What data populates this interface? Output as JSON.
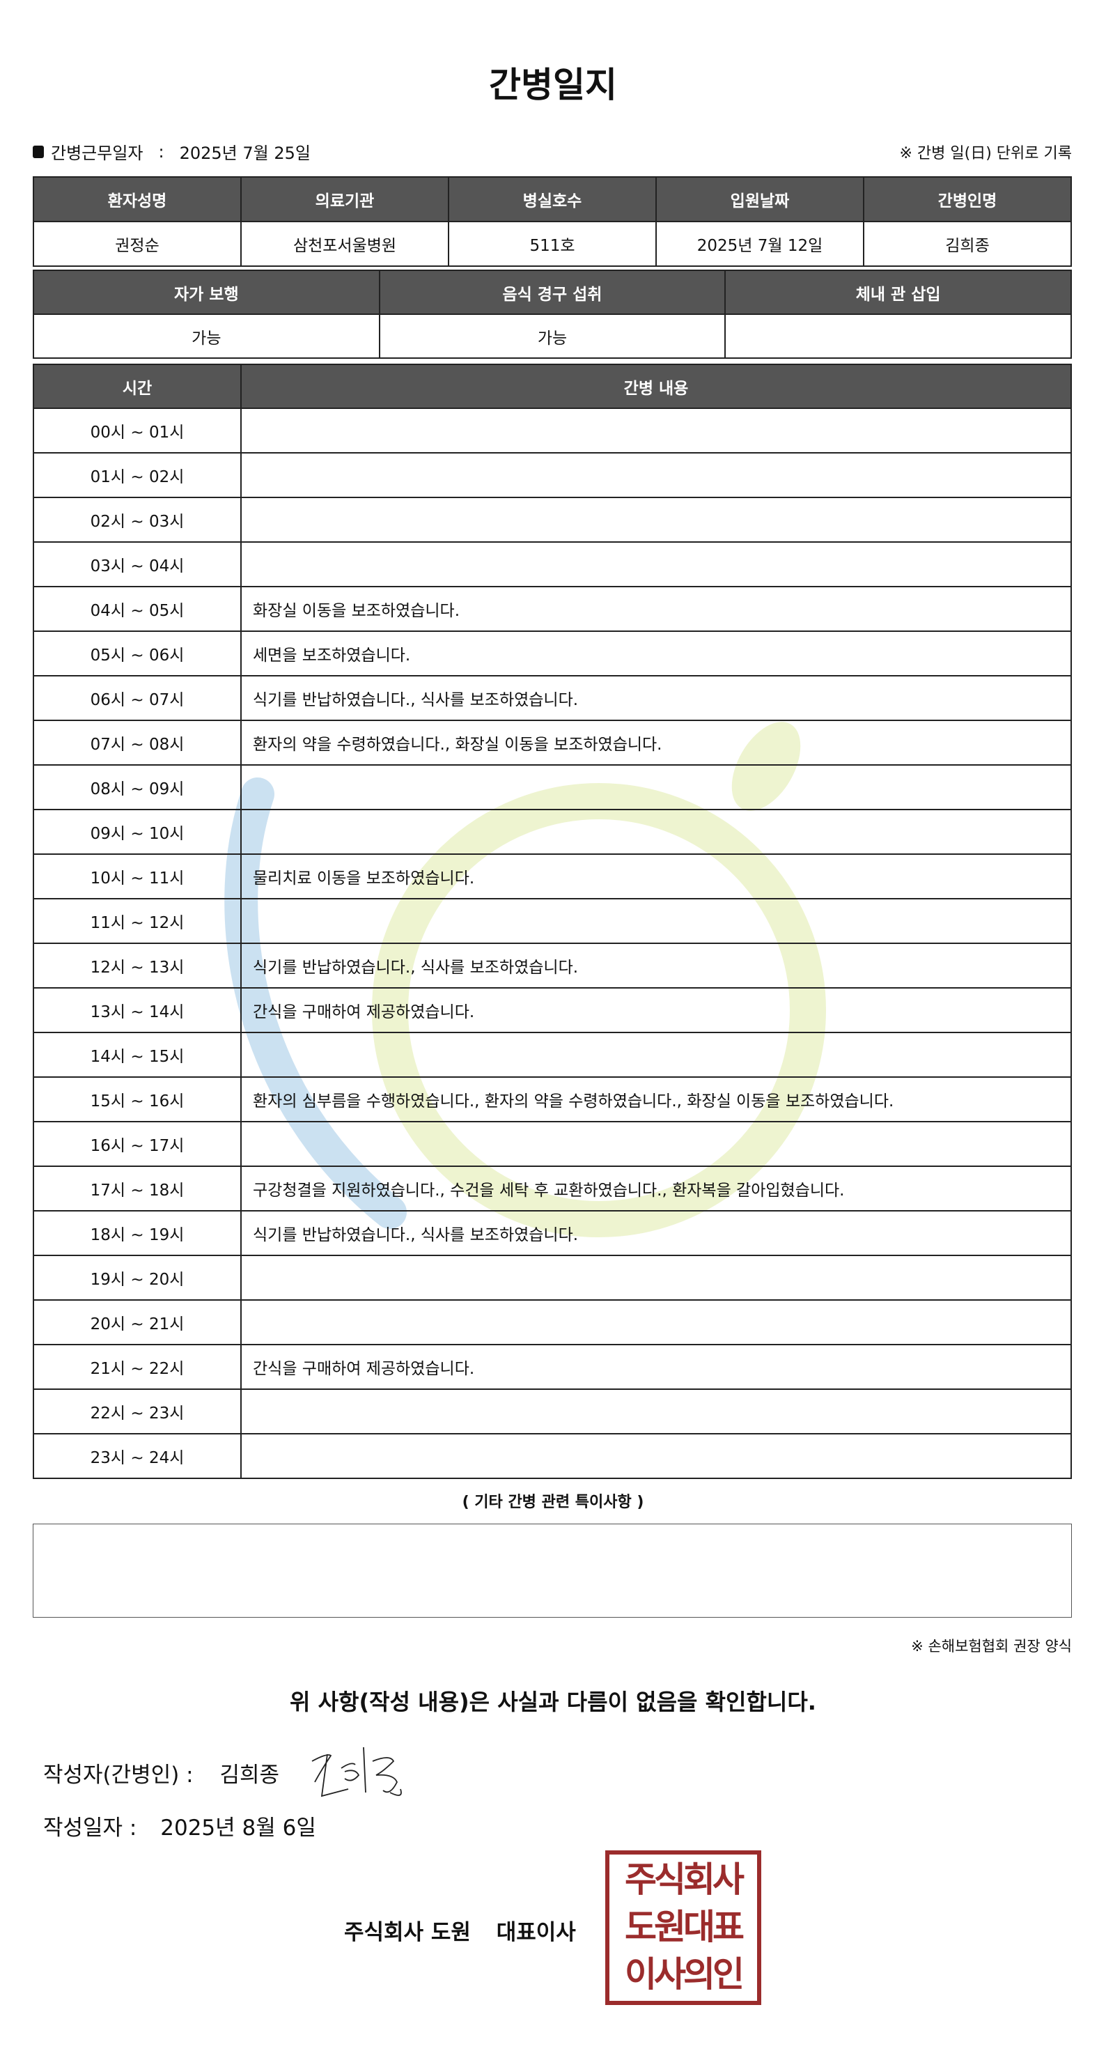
{
  "title": "간병일지",
  "work_date": {
    "label": "간병근무일자",
    "separator": ":",
    "value": "2025년 7월 25일"
  },
  "day_note": "※ 간병 일(日) 단위로 기록",
  "info": {
    "headers": [
      "환자성명",
      "의료기관",
      "병실호수",
      "입원날짜",
      "간병인명"
    ],
    "values": [
      "권정순",
      "삼천포서울병원",
      "511호",
      "2025년 7월 12일",
      "김희종"
    ]
  },
  "status": {
    "headers": [
      "자가 보행",
      "음식 경구 섭취",
      "체내 관 삽입"
    ],
    "values": [
      "가능",
      "가능",
      ""
    ]
  },
  "log": {
    "headers": [
      "시간",
      "간병 내용"
    ],
    "rows": [
      {
        "time": "00시 ~ 01시",
        "content": ""
      },
      {
        "time": "01시 ~ 02시",
        "content": ""
      },
      {
        "time": "02시 ~ 03시",
        "content": ""
      },
      {
        "time": "03시 ~ 04시",
        "content": ""
      },
      {
        "time": "04시 ~ 05시",
        "content": "화장실 이동을 보조하였습니다."
      },
      {
        "time": "05시 ~ 06시",
        "content": "세면을 보조하였습니다."
      },
      {
        "time": "06시 ~ 07시",
        "content": "식기를 반납하였습니다., 식사를 보조하였습니다."
      },
      {
        "time": "07시 ~ 08시",
        "content": "환자의 약을 수령하였습니다., 화장실 이동을 보조하였습니다."
      },
      {
        "time": "08시 ~ 09시",
        "content": ""
      },
      {
        "time": "09시 ~ 10시",
        "content": ""
      },
      {
        "time": "10시 ~ 11시",
        "content": "물리치료 이동을 보조하였습니다."
      },
      {
        "time": "11시 ~ 12시",
        "content": ""
      },
      {
        "time": "12시 ~ 13시",
        "content": "식기를 반납하였습니다., 식사를 보조하였습니다."
      },
      {
        "time": "13시 ~ 14시",
        "content": "간식을 구매하여 제공하였습니다."
      },
      {
        "time": "14시 ~ 15시",
        "content": ""
      },
      {
        "time": "15시 ~ 16시",
        "content": "환자의 심부름을 수행하였습니다., 환자의 약을 수령하였습니다., 화장실 이동을 보조하였습니다."
      },
      {
        "time": "16시 ~ 17시",
        "content": ""
      },
      {
        "time": "17시 ~ 18시",
        "content": "구강청결을 지원하였습니다., 수건을 세탁 후 교환하였습니다., 환자복을 갈아입혔습니다."
      },
      {
        "time": "18시 ~ 19시",
        "content": "식기를 반납하였습니다., 식사를 보조하였습니다."
      },
      {
        "time": "19시 ~ 20시",
        "content": ""
      },
      {
        "time": "20시 ~ 21시",
        "content": ""
      },
      {
        "time": "21시 ~ 22시",
        "content": "간식을 구매하여 제공하였습니다."
      },
      {
        "time": "22시 ~ 23시",
        "content": ""
      },
      {
        "time": "23시 ~ 24시",
        "content": ""
      }
    ]
  },
  "other_notes": {
    "title": "( 기타 간병 관련 특이사항 )",
    "value": ""
  },
  "association_note": "※ 손해보험협회 권장 양식",
  "confirmation": "위 사항(작성 내용)은 사실과 다름이 없음을 확인합니다.",
  "writer": {
    "label": "작성자(간병인) :",
    "name": "김희종",
    "signature": "김희종"
  },
  "write_date": {
    "label": "작성일자 :",
    "value": "2025년 8월 6일"
  },
  "company": {
    "name": "주식회사 도원",
    "title": "대표이사"
  },
  "stamp": {
    "lines": [
      "주식회사",
      "도원대표",
      "이사의인"
    ],
    "color": "#9b2c2c"
  },
  "colors": {
    "header_bg": "#555555",
    "watermark_blue": "#a9cde8",
    "watermark_green": "#e3ecb0"
  }
}
